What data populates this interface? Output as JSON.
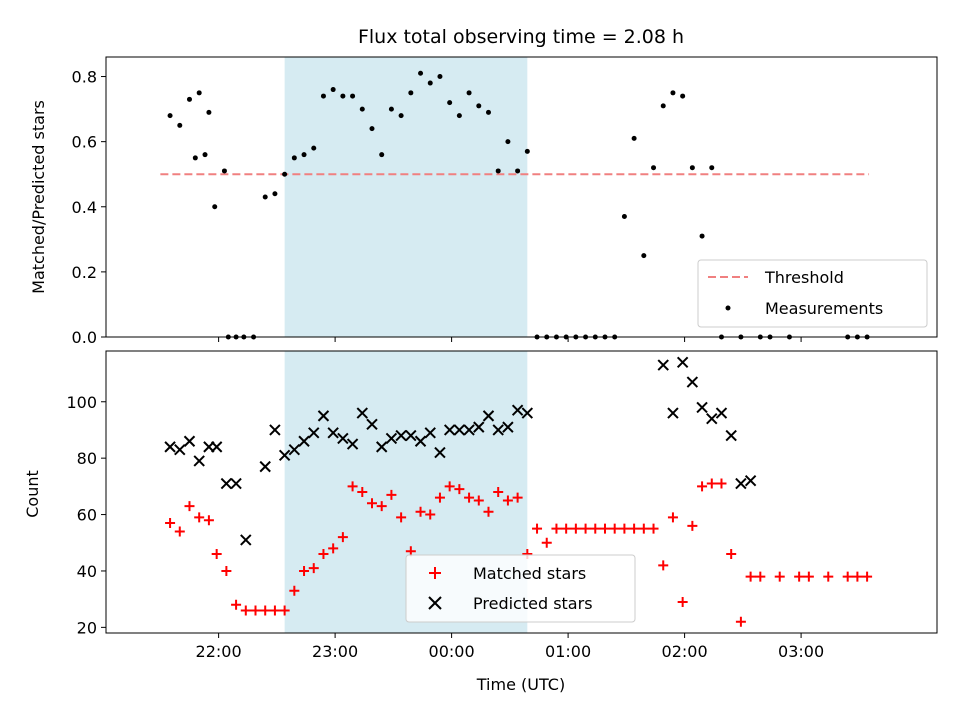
{
  "chart_data": [
    {
      "type": "scatter",
      "title": "Flux total observing time = 2.08 h",
      "ylabel": "Matched/Predicted stars",
      "xlabel": "",
      "x_unit": "UTC time (hours since 21:00; values >24 are after midnight)",
      "ylim": [
        0,
        0.86
      ],
      "yticks": [
        0.0,
        0.2,
        0.4,
        0.6,
        0.8
      ],
      "ytick_labels": [
        "0.0",
        "0.2",
        "0.4",
        "0.6",
        "0.8"
      ],
      "shaded_interval": [
        "22:34",
        "00:39"
      ],
      "threshold": {
        "name": "Threshold",
        "value": 0.5,
        "x_range": [
          "21:30",
          "03:35"
        ],
        "color": "#f08080"
      },
      "legend": {
        "position": "lower-right",
        "entries": [
          "Threshold",
          "Measurements"
        ]
      },
      "series": [
        {
          "name": "Measurements",
          "color": "#000000",
          "points": [
            [
              "21:35",
              0.68
            ],
            [
              "21:40",
              0.65
            ],
            [
              "21:45",
              0.73
            ],
            [
              "21:50",
              0.75
            ],
            [
              "21:55",
              0.69
            ],
            [
              "21:48",
              0.55
            ],
            [
              "21:53",
              0.56
            ],
            [
              "21:58",
              0.4
            ],
            [
              "22:03",
              0.51
            ],
            [
              "22:05",
              0.0
            ],
            [
              "22:09",
              0.0
            ],
            [
              "22:13",
              0.0
            ],
            [
              "22:18",
              0.0
            ],
            [
              "22:24",
              0.43
            ],
            [
              "22:29",
              0.44
            ],
            [
              "22:34",
              0.5
            ],
            [
              "22:39",
              0.55
            ],
            [
              "22:44",
              0.56
            ],
            [
              "22:49",
              0.58
            ],
            [
              "22:54",
              0.74
            ],
            [
              "22:59",
              0.76
            ],
            [
              "23:04",
              0.74
            ],
            [
              "23:09",
              0.74
            ],
            [
              "23:14",
              0.7
            ],
            [
              "23:19",
              0.64
            ],
            [
              "23:24",
              0.56
            ],
            [
              "23:29",
              0.7
            ],
            [
              "23:34",
              0.68
            ],
            [
              "23:39",
              0.75
            ],
            [
              "23:44",
              0.81
            ],
            [
              "23:49",
              0.78
            ],
            [
              "23:54",
              0.8
            ],
            [
              "23:59",
              0.72
            ],
            [
              "00:04",
              0.68
            ],
            [
              "00:09",
              0.75
            ],
            [
              "00:14",
              0.71
            ],
            [
              "00:19",
              0.69
            ],
            [
              "00:24",
              0.51
            ],
            [
              "00:29",
              0.6
            ],
            [
              "00:34",
              0.51
            ],
            [
              "00:39",
              0.57
            ],
            [
              "00:44",
              0.0
            ],
            [
              "00:49",
              0.0
            ],
            [
              "00:54",
              0.0
            ],
            [
              "00:59",
              0.0
            ],
            [
              "01:04",
              0.0
            ],
            [
              "01:09",
              0.0
            ],
            [
              "01:14",
              0.0
            ],
            [
              "01:19",
              0.0
            ],
            [
              "01:24",
              0.0
            ],
            [
              "01:29",
              0.37
            ],
            [
              "01:34",
              0.61
            ],
            [
              "01:39",
              0.25
            ],
            [
              "01:44",
              0.52
            ],
            [
              "01:49",
              0.71
            ],
            [
              "01:54",
              0.75
            ],
            [
              "01:59",
              0.74
            ],
            [
              "02:04",
              0.52
            ],
            [
              "02:09",
              0.31
            ],
            [
              "02:14",
              0.52
            ],
            [
              "02:19",
              0.0
            ],
            [
              "02:29",
              0.0
            ],
            [
              "02:39",
              0.0
            ],
            [
              "02:44",
              0.0
            ],
            [
              "02:54",
              0.0
            ],
            [
              "03:24",
              0.0
            ],
            [
              "03:29",
              0.0
            ],
            [
              "03:34",
              0.0
            ]
          ]
        }
      ]
    },
    {
      "type": "scatter",
      "title": "",
      "ylabel": "Count",
      "xlabel": "Time (UTC)",
      "ylim": [
        18,
        118
      ],
      "yticks": [
        20,
        40,
        60,
        80,
        100
      ],
      "ytick_labels": [
        "20",
        "40",
        "60",
        "80",
        "100"
      ],
      "xtick_labels": [
        "22:00",
        "23:00",
        "00:00",
        "01:00",
        "02:00",
        "03:00"
      ],
      "shaded_interval": [
        "22:34",
        "00:39"
      ],
      "legend": {
        "position": "bottom-center",
        "entries": [
          "Matched stars",
          "Predicted stars"
        ]
      },
      "series": [
        {
          "name": "Matched stars",
          "color": "#ff0000",
          "marker": "plus",
          "points": [
            [
              "21:35",
              57
            ],
            [
              "21:40",
              54
            ],
            [
              "21:45",
              63
            ],
            [
              "21:50",
              59
            ],
            [
              "21:55",
              58
            ],
            [
              "21:59",
              46
            ],
            [
              "22:04",
              40
            ],
            [
              "22:09",
              28
            ],
            [
              "22:14",
              26
            ],
            [
              "22:19",
              26
            ],
            [
              "22:24",
              26
            ],
            [
              "22:29",
              26
            ],
            [
              "22:34",
              26
            ],
            [
              "22:39",
              33
            ],
            [
              "22:44",
              40
            ],
            [
              "22:49",
              41
            ],
            [
              "22:54",
              46
            ],
            [
              "22:59",
              48
            ],
            [
              "23:04",
              52
            ],
            [
              "23:09",
              70
            ],
            [
              "23:14",
              68
            ],
            [
              "23:19",
              64
            ],
            [
              "23:24",
              63
            ],
            [
              "23:29",
              67
            ],
            [
              "23:34",
              59
            ],
            [
              "23:39",
              47
            ],
            [
              "23:44",
              61
            ],
            [
              "23:49",
              60
            ],
            [
              "23:54",
              66
            ],
            [
              "23:59",
              70
            ],
            [
              "00:04",
              69
            ],
            [
              "00:09",
              66
            ],
            [
              "00:14",
              65
            ],
            [
              "00:19",
              61
            ],
            [
              "00:24",
              68
            ],
            [
              "00:29",
              65
            ],
            [
              "00:34",
              66
            ],
            [
              "00:39",
              46
            ],
            [
              "00:44",
              55
            ],
            [
              "00:49",
              50
            ],
            [
              "00:54",
              55
            ],
            [
              "00:59",
              55
            ],
            [
              "01:04",
              55
            ],
            [
              "01:09",
              55
            ],
            [
              "01:14",
              55
            ],
            [
              "01:19",
              55
            ],
            [
              "01:24",
              55
            ],
            [
              "01:29",
              55
            ],
            [
              "01:34",
              55
            ],
            [
              "01:39",
              55
            ],
            [
              "01:44",
              55
            ],
            [
              "01:49",
              42
            ],
            [
              "01:54",
              59
            ],
            [
              "01:59",
              29
            ],
            [
              "02:04",
              56
            ],
            [
              "02:09",
              70
            ],
            [
              "02:14",
              71
            ],
            [
              "02:19",
              71
            ],
            [
              "02:24",
              46
            ],
            [
              "02:29",
              22
            ],
            [
              "02:34",
              38
            ],
            [
              "02:39",
              38
            ],
            [
              "02:49",
              38
            ],
            [
              "02:59",
              38
            ],
            [
              "03:04",
              38
            ],
            [
              "03:14",
              38
            ],
            [
              "03:24",
              38
            ],
            [
              "03:29",
              38
            ],
            [
              "03:34",
              38
            ]
          ]
        },
        {
          "name": "Predicted stars",
          "color": "#000000",
          "marker": "x",
          "points": [
            [
              "21:35",
              84
            ],
            [
              "21:40",
              83
            ],
            [
              "21:45",
              86
            ],
            [
              "21:50",
              79
            ],
            [
              "21:55",
              84
            ],
            [
              "21:59",
              84
            ],
            [
              "22:04",
              71
            ],
            [
              "22:09",
              71
            ],
            [
              "22:14",
              51
            ],
            [
              "22:24",
              77
            ],
            [
              "22:29",
              90
            ],
            [
              "22:34",
              81
            ],
            [
              "22:39",
              83
            ],
            [
              "22:44",
              86
            ],
            [
              "22:49",
              89
            ],
            [
              "22:54",
              95
            ],
            [
              "22:59",
              89
            ],
            [
              "23:04",
              87
            ],
            [
              "23:09",
              85
            ],
            [
              "23:14",
              96
            ],
            [
              "23:19",
              92
            ],
            [
              "23:24",
              84
            ],
            [
              "23:29",
              87
            ],
            [
              "23:34",
              88
            ],
            [
              "23:39",
              88
            ],
            [
              "23:44",
              86
            ],
            [
              "23:49",
              89
            ],
            [
              "23:54",
              82
            ],
            [
              "23:59",
              90
            ],
            [
              "00:04",
              90
            ],
            [
              "00:09",
              90
            ],
            [
              "00:14",
              91
            ],
            [
              "00:19",
              95
            ],
            [
              "00:24",
              90
            ],
            [
              "00:29",
              91
            ],
            [
              "00:34",
              97
            ],
            [
              "00:39",
              96
            ],
            [
              "01:49",
              113
            ],
            [
              "01:54",
              96
            ],
            [
              "01:59",
              114
            ],
            [
              "02:04",
              107
            ],
            [
              "02:09",
              98
            ],
            [
              "02:14",
              94
            ],
            [
              "02:19",
              96
            ],
            [
              "02:24",
              88
            ],
            [
              "02:29",
              71
            ],
            [
              "02:34",
              72
            ]
          ]
        }
      ]
    }
  ]
}
